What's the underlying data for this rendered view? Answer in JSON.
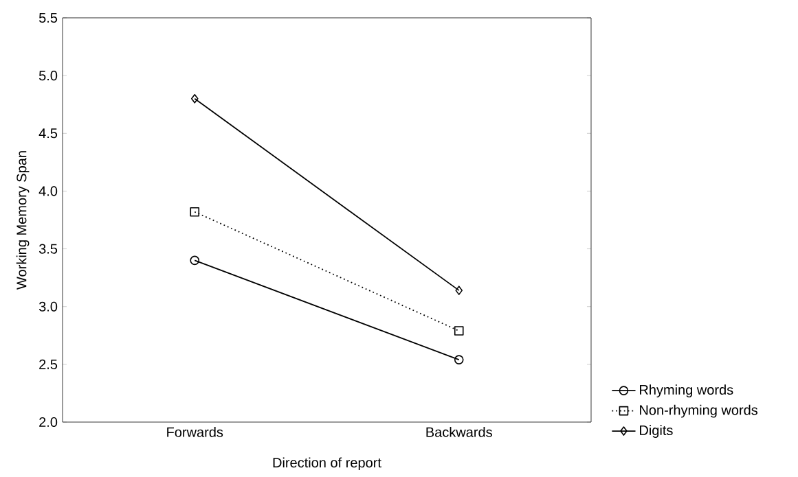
{
  "chart_data": {
    "type": "line",
    "xlabel": "Direction of report",
    "ylabel": "Working Memory Span",
    "categories": [
      "Forwards",
      "Backwards"
    ],
    "series": [
      {
        "name": "Rhyming words",
        "color": "#000000",
        "values": [
          3.4,
          2.54
        ],
        "marker": "circle",
        "line_style": "solid"
      },
      {
        "name": "Non-rhyming words",
        "color": "#000000",
        "values": [
          3.82,
          2.79
        ],
        "marker": "square",
        "line_style": "dotted"
      },
      {
        "name": "Digits",
        "color": "#000000",
        "values": [
          4.8,
          3.14
        ],
        "marker": "diamond",
        "line_style": "solid"
      }
    ],
    "ylim": [
      2.0,
      5.5
    ],
    "yticks": [
      {
        "value": 2.0,
        "label": "2.0"
      },
      {
        "value": 2.5,
        "label": "2.5"
      },
      {
        "value": 3.0,
        "label": "3.0"
      },
      {
        "value": 3.5,
        "label": "3.5"
      },
      {
        "value": 4.0,
        "label": "4.0"
      },
      {
        "value": 4.5,
        "label": "4.5"
      },
      {
        "value": 5.0,
        "label": "5.0"
      },
      {
        "value": 5.5,
        "label": "5.5"
      }
    ],
    "grid": false,
    "legend": "bottom right"
  }
}
